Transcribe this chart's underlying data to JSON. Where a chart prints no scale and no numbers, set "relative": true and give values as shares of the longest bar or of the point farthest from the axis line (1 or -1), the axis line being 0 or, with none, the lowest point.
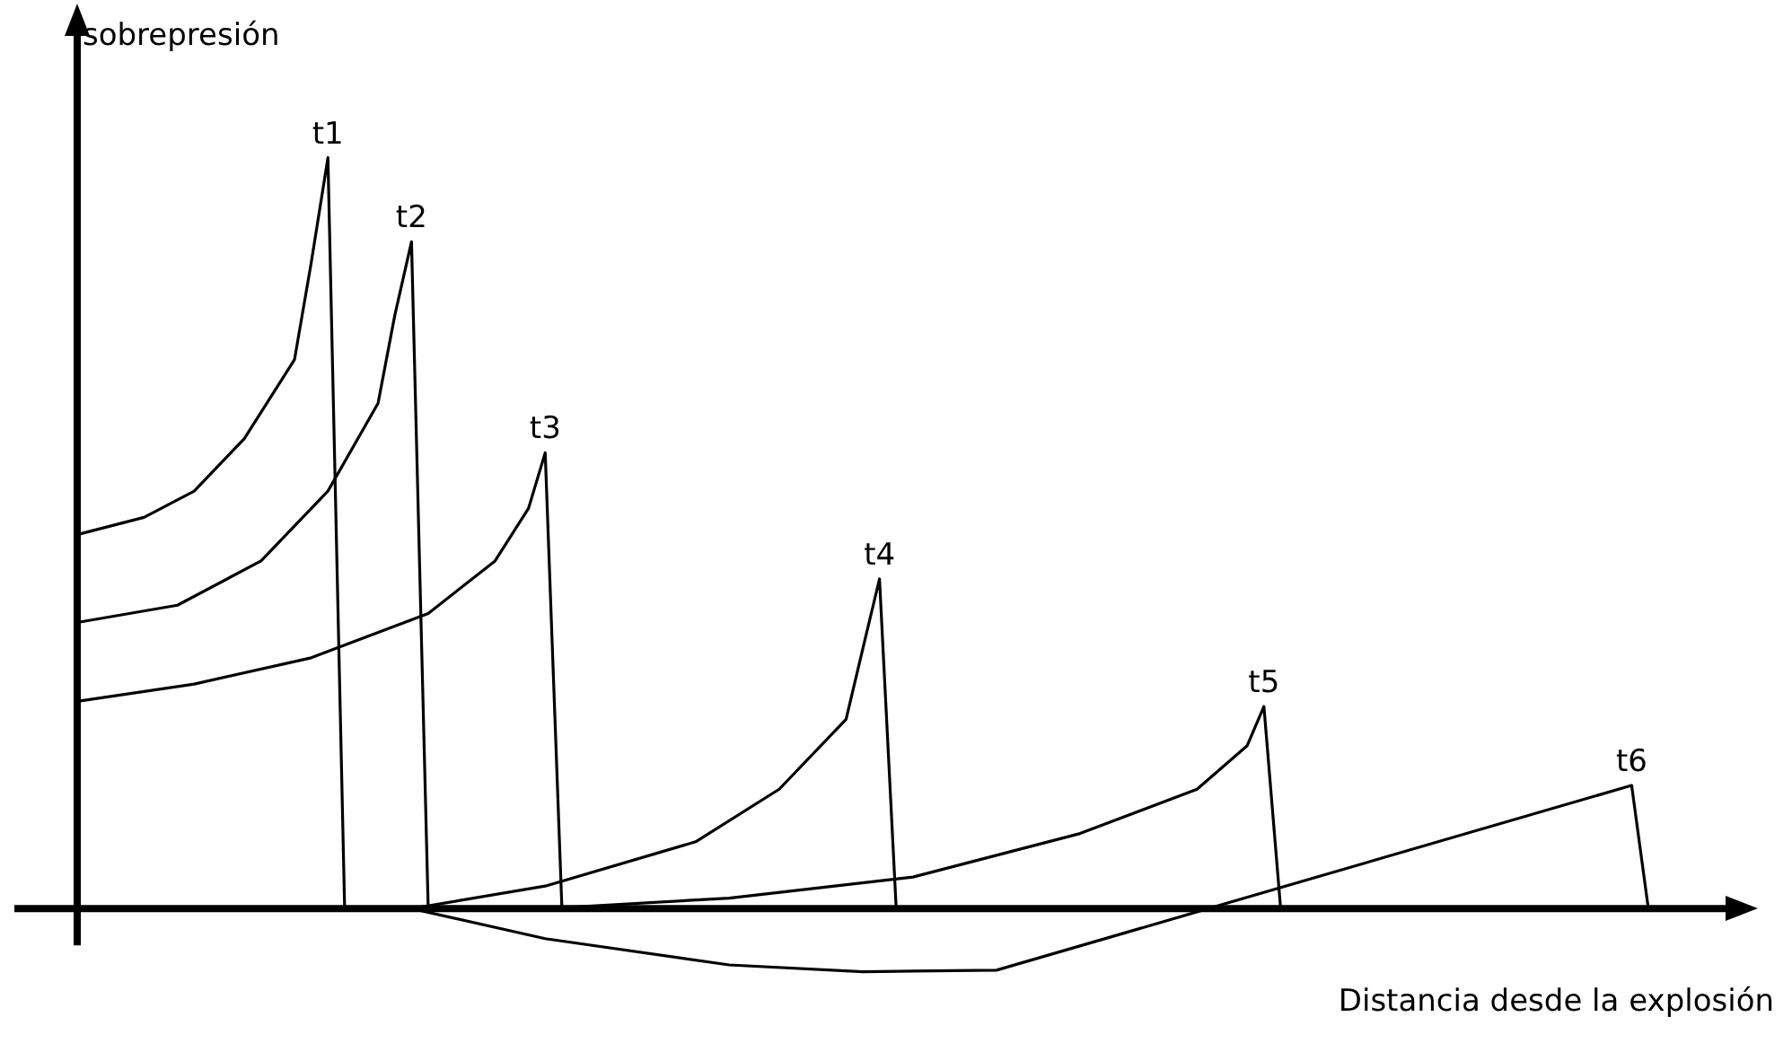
{
  "chart_data": {
    "type": "line",
    "relative": true,
    "xlabel": "Distancia desde la explosión",
    "ylabel": "sobrepresión",
    "marker": "none",
    "categories": [
      null,
      null,
      null,
      null,
      null,
      null,
      null,
      null,
      null,
      null,
      null,
      null,
      null,
      null,
      null,
      null,
      null,
      null,
      null,
      null,
      null,
      null,
      null,
      null,
      null,
      null,
      null,
      null,
      null,
      null,
      null,
      null,
      null,
      null,
      null,
      null,
      null,
      null,
      null,
      null,
      null,
      null,
      null,
      null,
      null,
      null,
      null,
      null,
      null,
      null,
      null,
      null,
      null,
      null,
      null,
      null,
      null,
      null,
      null,
      null,
      null,
      null,
      null,
      null,
      null,
      null,
      null,
      null,
      null,
      null,
      null,
      null,
      null,
      null,
      null,
      null,
      null,
      null,
      null,
      null,
      null,
      null,
      null,
      null,
      null,
      null,
      null,
      null,
      null,
      null,
      null,
      null,
      null,
      null,
      null
    ],
    "series": [
      {
        "name": "t1",
        "color": "#000000",
        "values": [
          0.498,
          null,
          null,
          null,
          0.521,
          null,
          null,
          0.556,
          null,
          null,
          0.626,
          null,
          null,
          0.731,
          0.86,
          1,
          0,
          null,
          null,
          null,
          null,
          null,
          null,
          null,
          null,
          null,
          null,
          null,
          null,
          null,
          null,
          null,
          null,
          null,
          null,
          null,
          null,
          null,
          null,
          null,
          null,
          null,
          null,
          null,
          null,
          null,
          null,
          null,
          null,
          null,
          null,
          null,
          null,
          null,
          null,
          null,
          null,
          null,
          null,
          null,
          null,
          null,
          null,
          null,
          null,
          null,
          null,
          null,
          null,
          null,
          null,
          null,
          null,
          null,
          null,
          null,
          null,
          null,
          null,
          null,
          null,
          null,
          null,
          null,
          null,
          null,
          null,
          null,
          null,
          null,
          null,
          null,
          null,
          null,
          null
        ]
      },
      {
        "name": "t2",
        "color": "#000000",
        "values": [
          0.381,
          null,
          null,
          null,
          null,
          null,
          0.404,
          null,
          null,
          null,
          null,
          0.463,
          null,
          null,
          null,
          0.556,
          null,
          null,
          0.673,
          0.79,
          0.888,
          0,
          null,
          null,
          null,
          null,
          null,
          null,
          null,
          null,
          null,
          null,
          null,
          null,
          null,
          null,
          null,
          null,
          null,
          null,
          null,
          null,
          null,
          null,
          null,
          null,
          null,
          null,
          null,
          null,
          null,
          null,
          null,
          null,
          null,
          null,
          null,
          null,
          null,
          null,
          null,
          null,
          null,
          null,
          null,
          null,
          null,
          null,
          null,
          null,
          null,
          null,
          null,
          null,
          null,
          null,
          null,
          null,
          null,
          null,
          null,
          null,
          null,
          null,
          null,
          null,
          null,
          null,
          null,
          null,
          null,
          null,
          null,
          null,
          null
        ]
      },
      {
        "name": "t3",
        "color": "#000000",
        "values": [
          0.276,
          null,
          null,
          null,
          null,
          null,
          null,
          0.299,
          null,
          null,
          null,
          null,
          null,
          null,
          0.334,
          null,
          null,
          null,
          null,
          null,
          null,
          0.393,
          null,
          null,
          null,
          0.463,
          null,
          0.533,
          0.607,
          0,
          null,
          null,
          null,
          null,
          null,
          null,
          null,
          null,
          null,
          null,
          null,
          null,
          null,
          null,
          null,
          null,
          null,
          null,
          null,
          null,
          null,
          null,
          null,
          null,
          null,
          null,
          null,
          null,
          null,
          null,
          null,
          null,
          null,
          null,
          null,
          null,
          null,
          null,
          null,
          null,
          null,
          null,
          null,
          null,
          null,
          null,
          null,
          null,
          null,
          null,
          null,
          null,
          null,
          null,
          null,
          null,
          null,
          null,
          null,
          null,
          null,
          null,
          null,
          null,
          null
        ]
      },
      {
        "name": "t4",
        "color": "#000000",
        "values": [
          null,
          null,
          null,
          null,
          null,
          null,
          null,
          null,
          null,
          null,
          null,
          null,
          null,
          null,
          null,
          null,
          null,
          null,
          null,
          null,
          0,
          null,
          null,
          null,
          null,
          null,
          null,
          null,
          0.03,
          null,
          null,
          null,
          null,
          null,
          null,
          null,
          null,
          0.089,
          null,
          null,
          null,
          null,
          0.159,
          null,
          null,
          null,
          0.252,
          0.346,
          0.439,
          0,
          null,
          null,
          null,
          null,
          null,
          null,
          null,
          null,
          null,
          null,
          null,
          null,
          null,
          null,
          null,
          null,
          null,
          null,
          null,
          null,
          null,
          null,
          null,
          null,
          null,
          null,
          null,
          null,
          null,
          null,
          null,
          null,
          null,
          null,
          null,
          null,
          null,
          null,
          null,
          null,
          null,
          null,
          null,
          null,
          null
        ]
      },
      {
        "name": "t5",
        "color": "#000000",
        "values": [
          null,
          null,
          null,
          null,
          null,
          null,
          null,
          null,
          null,
          null,
          null,
          null,
          null,
          null,
          null,
          null,
          null,
          null,
          null,
          null,
          null,
          null,
          null,
          null,
          null,
          null,
          null,
          null,
          0,
          null,
          null,
          null,
          null,
          null,
          null,
          null,
          null,
          null,
          null,
          0.014,
          null,
          null,
          null,
          null,
          null,
          null,
          null,
          null,
          null,
          null,
          0.042,
          null,
          null,
          null,
          null,
          null,
          null,
          null,
          null,
          null,
          0.1,
          null,
          null,
          null,
          null,
          null,
          null,
          0.159,
          null,
          null,
          0.217,
          0.269,
          0,
          null,
          null,
          null,
          null,
          null,
          null,
          null,
          null,
          null,
          null,
          null,
          null,
          null,
          null,
          null,
          null,
          null,
          null,
          null,
          null,
          null,
          null
        ]
      },
      {
        "name": "t6",
        "color": "#000000",
        "values": [
          null,
          null,
          null,
          null,
          null,
          null,
          null,
          null,
          null,
          null,
          null,
          null,
          null,
          null,
          null,
          null,
          null,
          null,
          null,
          null,
          0,
          null,
          null,
          null,
          null,
          null,
          null,
          null,
          -0.04,
          null,
          null,
          null,
          null,
          null,
          null,
          null,
          null,
          null,
          null,
          -0.075,
          null,
          null,
          null,
          null,
          null,
          null,
          null,
          -0.084,
          null,
          null,
          null,
          null,
          null,
          null,
          null,
          -0.082,
          null,
          null,
          null,
          null,
          null,
          null,
          null,
          null,
          null,
          null,
          null,
          null,
          null,
          null,
          null,
          null,
          null,
          null,
          null,
          null,
          null,
          null,
          null,
          null,
          null,
          null,
          null,
          null,
          null,
          null,
          null,
          null,
          null,
          null,
          null,
          null,
          null,
          0.164,
          0
        ]
      }
    ]
  }
}
